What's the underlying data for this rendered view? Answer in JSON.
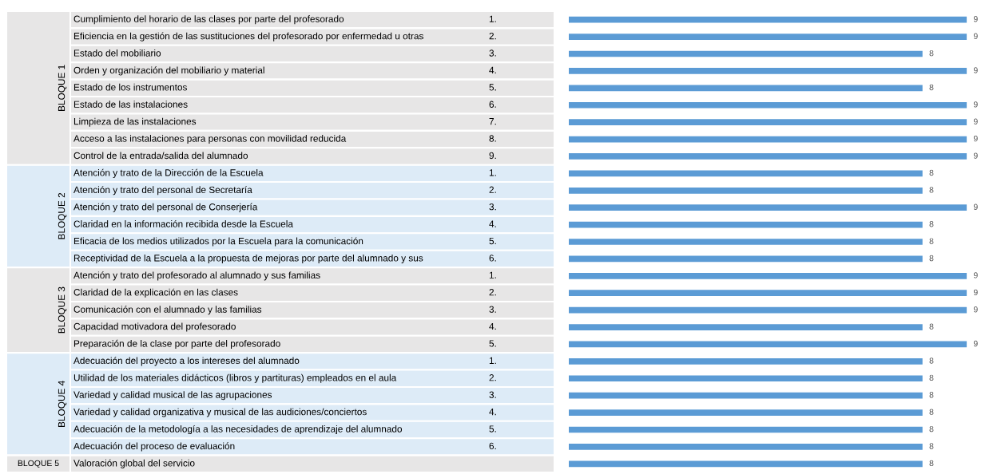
{
  "chart_data": {
    "type": "bar",
    "orientation": "horizontal",
    "data_labels": true,
    "color": "#5b9bd5",
    "categories": [
      "Cumplimiento del horario de las clases por parte del profesorado",
      "Eficiencia en la gestión de las sustituciones del profesorado por enfermedad u otras",
      "Estado del mobiliario",
      "Orden y organización del mobiliario y material",
      "Estado de los instrumentos",
      "Estado de las instalaciones",
      "Limpieza de las instalaciones",
      "Acceso a las instalaciones para personas con movilidad reducida",
      "Control de la entrada/salida del alumnado",
      "Atención y trato de la Dirección de la Escuela",
      "Atención y trato del personal de Secretaría",
      "Atención y trato del personal de Conserjería",
      "Claridad en la información recibida desde la Escuela",
      "Eficacia de los medios utilizados por la Escuela para la comunicación",
      "Receptividad de la Escuela a la propuesta de mejoras por parte del alumnado y sus",
      "Atención y trato del profesorado al alumnado y sus familias",
      "Claridad de la explicación en las clases",
      "Comunicación con el alumnado y las familias",
      "Capacidad motivadora del profesorado",
      "Preparación de la clase por parte del profesorado",
      "Adecuación del proyecto a los intereses del alumnado",
      "Utilidad de los materiales didácticos (libros y partituras) empleados en el aula",
      "Variedad y calidad musical de las agrupaciones",
      "Variedad y calidad organizativa y musical de las audiciones/conciertos",
      "Adecuación de la metodología a las necesidades de aprendizaje del alumnado",
      "Adecuación del proceso de evaluación",
      "Valoración global del servicio"
    ],
    "y2_categories": [
      "1.",
      "2.",
      "3.",
      "4.",
      "5.",
      "6.",
      "7.",
      "8.",
      "9.",
      "1.",
      "2.",
      "3.",
      "4.",
      "5.",
      "6.",
      "1.",
      "2.",
      "3.",
      "4.",
      "5.",
      "1.",
      "2.",
      "3.",
      "4.",
      "5.",
      "6.",
      null
    ],
    "values": [
      9,
      9,
      8,
      9,
      8,
      9,
      9,
      9,
      9,
      8,
      8,
      9,
      8,
      8,
      8,
      9,
      9,
      9,
      8,
      9,
      8,
      8,
      8,
      8,
      8,
      8,
      8
    ],
    "annotations": [
      "BLOQUE 1",
      "BLOQUE 2",
      "BLOQUE 3",
      "BLOQUE 4",
      "BLOQUE 5"
    ],
    "legend": false
  }
}
